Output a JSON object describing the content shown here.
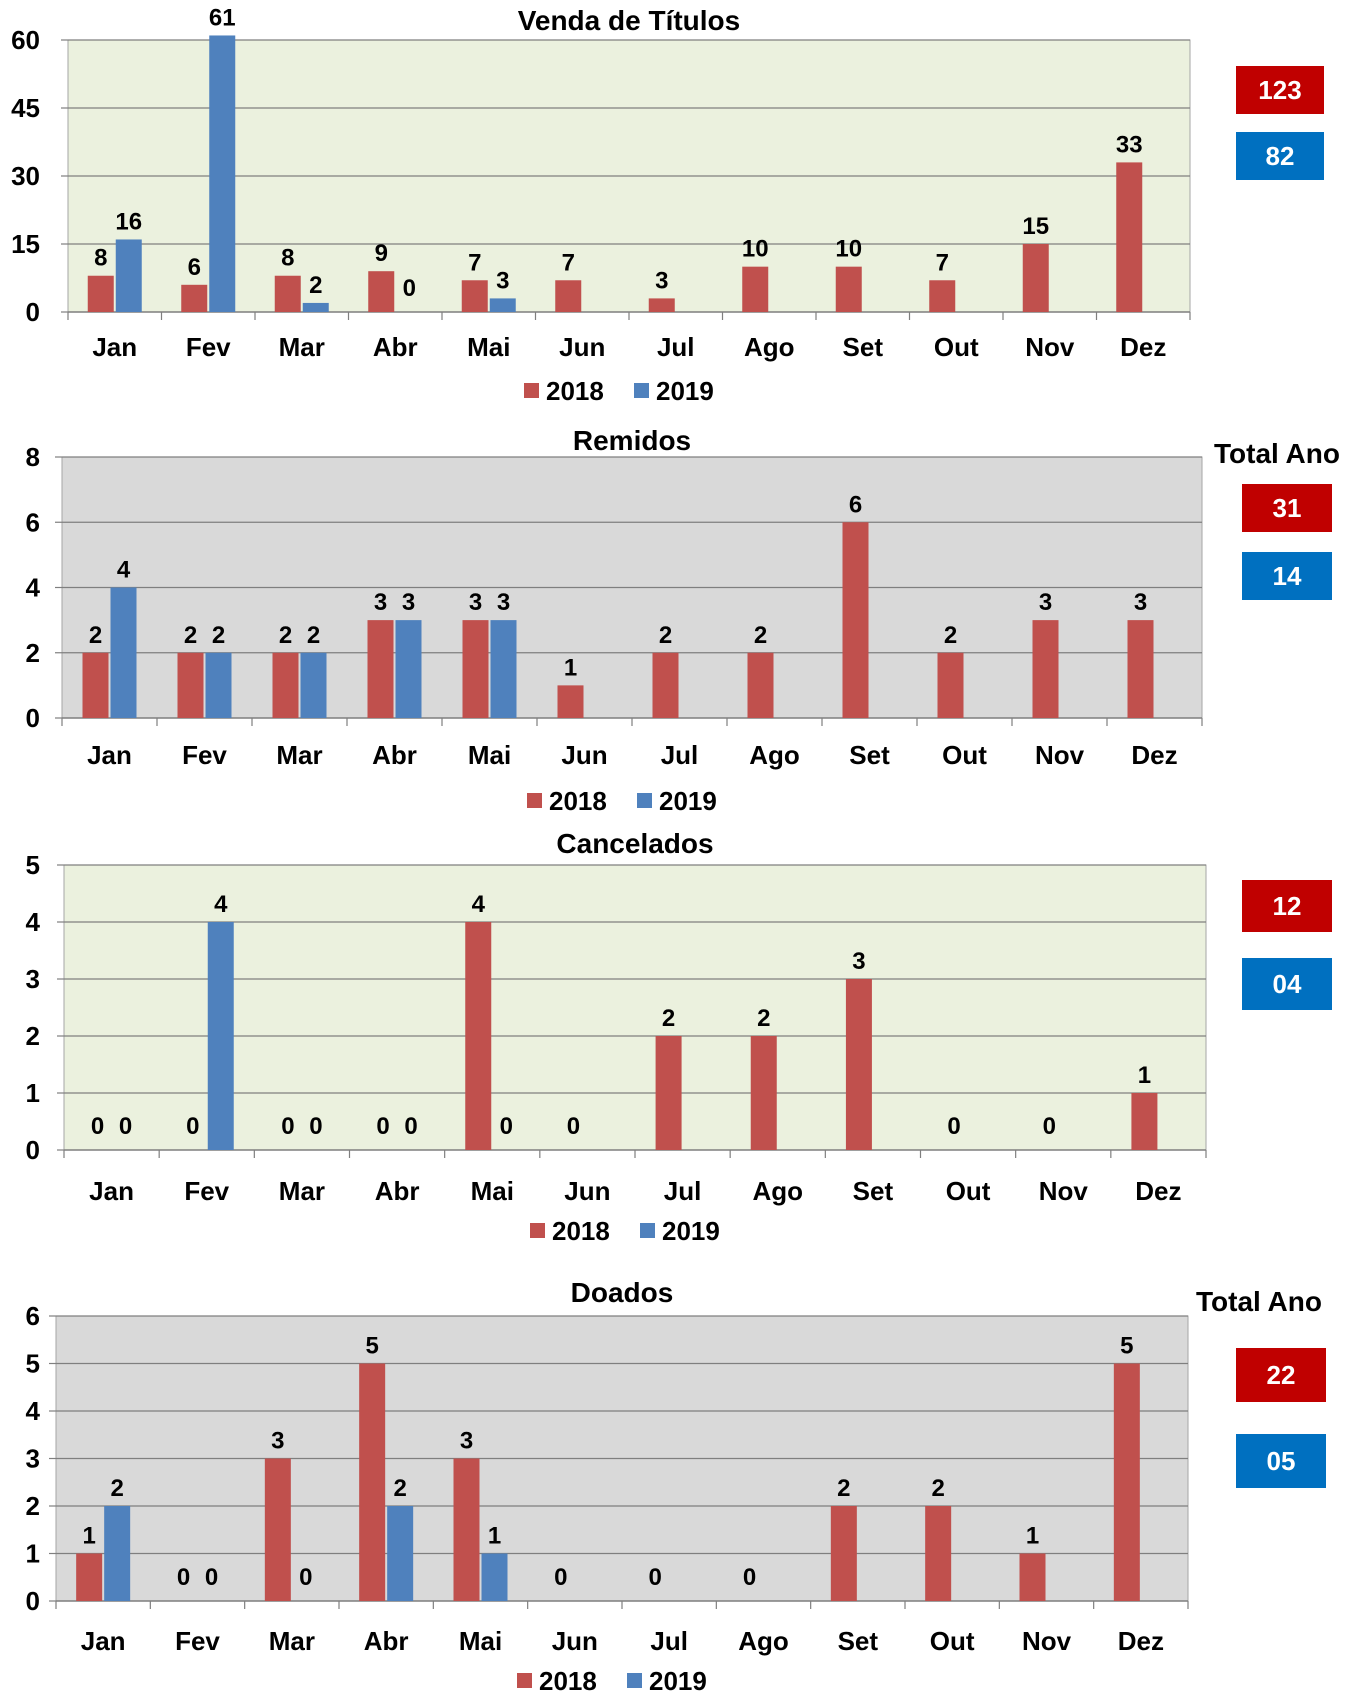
{
  "colors": {
    "series_2018": "#c0504d",
    "series_2019": "#4f81bd",
    "total_2018": "#c00000",
    "total_2019": "#0070c0"
  },
  "chart_data": [
    {
      "type": "bar",
      "title": "Venda de Títulos",
      "categories": [
        "Jan",
        "Fev",
        "Mar",
        "Abr",
        "Mai",
        "Jun",
        "Jul",
        "Ago",
        "Set",
        "Out",
        "Nov",
        "Dez"
      ],
      "series": [
        {
          "name": "2018",
          "values": [
            8,
            6,
            8,
            9,
            7,
            7,
            3,
            10,
            10,
            7,
            15,
            33
          ],
          "labels": [
            "8",
            "6",
            "8",
            "9",
            "7",
            "7",
            "3",
            "10",
            "10",
            "7",
            "15",
            "33"
          ]
        },
        {
          "name": "2019",
          "values": [
            16,
            61,
            2,
            0,
            3,
            null,
            null,
            null,
            null,
            null,
            null,
            null
          ],
          "labels": [
            "16",
            "61",
            "2",
            "0",
            "3",
            null,
            null,
            null,
            null,
            null,
            null,
            null
          ]
        }
      ],
      "ylim": [
        0,
        60
      ],
      "yticks": [
        "0",
        "15",
        "30",
        "45",
        "60"
      ],
      "plot_background": "#ebf1de",
      "grid": true,
      "legend": "bottom",
      "totals": {
        "heading": "",
        "y2018": "123",
        "y2019": "82"
      }
    },
    {
      "type": "bar",
      "title": "Remidos",
      "categories": [
        "Jan",
        "Fev",
        "Mar",
        "Abr",
        "Mai",
        "Jun",
        "Jul",
        "Ago",
        "Set",
        "Out",
        "Nov",
        "Dez"
      ],
      "series": [
        {
          "name": "2018",
          "values": [
            2,
            2,
            2,
            3,
            3,
            1,
            2,
            2,
            6,
            2,
            3,
            3
          ],
          "labels": [
            "2",
            "2",
            "2",
            "3",
            "3",
            "1",
            "2",
            "2",
            "6",
            "2",
            "3",
            "3"
          ]
        },
        {
          "name": "2019",
          "values": [
            4,
            2,
            2,
            3,
            3,
            null,
            null,
            null,
            null,
            null,
            null,
            null
          ],
          "labels": [
            "4",
            "2",
            "2",
            "3",
            "3",
            null,
            null,
            null,
            null,
            null,
            null,
            null
          ]
        }
      ],
      "ylim": [
        0,
        8
      ],
      "yticks": [
        "0",
        "2",
        "4",
        "6",
        "8"
      ],
      "plot_background": "#d9d9d9",
      "grid": true,
      "legend": "bottom",
      "totals": {
        "heading": "Total Ano",
        "y2018": "31",
        "y2019": "14"
      }
    },
    {
      "type": "bar",
      "title": "Cancelados",
      "categories": [
        "Jan",
        "Fev",
        "Mar",
        "Abr",
        "Mai",
        "Jun",
        "Jul",
        "Ago",
        "Set",
        "Out",
        "Nov",
        "Dez"
      ],
      "series": [
        {
          "name": "2018",
          "values": [
            0,
            0,
            0,
            0,
            4,
            0,
            2,
            2,
            3,
            0,
            0,
            1
          ],
          "labels": [
            "0",
            "0",
            "0",
            "0",
            "4",
            "0",
            "2",
            "2",
            "3",
            "0",
            "0",
            "1"
          ]
        },
        {
          "name": "2019",
          "values": [
            0,
            4,
            0,
            0,
            0,
            null,
            null,
            null,
            null,
            null,
            null,
            null
          ],
          "labels": [
            "0",
            "4",
            "0",
            "0",
            "0",
            null,
            null,
            null,
            null,
            null,
            null,
            null
          ]
        }
      ],
      "ylim": [
        0,
        5
      ],
      "yticks": [
        "0",
        "1",
        "2",
        "3",
        "4",
        "5"
      ],
      "plot_background": "#ebf1de",
      "grid": true,
      "legend": "bottom",
      "totals": {
        "heading": "",
        "y2018": "12",
        "y2019": "04"
      }
    },
    {
      "type": "bar",
      "title": "Doados",
      "categories": [
        "Jan",
        "Fev",
        "Mar",
        "Abr",
        "Mai",
        "Jun",
        "Jul",
        "Ago",
        "Set",
        "Out",
        "Nov",
        "Dez"
      ],
      "series": [
        {
          "name": "2018",
          "values": [
            1,
            0,
            3,
            5,
            3,
            0,
            0,
            0,
            2,
            2,
            1,
            5
          ],
          "labels": [
            "1",
            "0",
            "3",
            "5",
            "3",
            "0",
            "0",
            "0",
            "2",
            "2",
            "1",
            "5"
          ]
        },
        {
          "name": "2019",
          "values": [
            2,
            0,
            0,
            2,
            1,
            null,
            null,
            null,
            null,
            null,
            null,
            null
          ],
          "labels": [
            "2",
            "0",
            "0",
            "2",
            "1",
            null,
            null,
            null,
            null,
            null,
            null,
            null
          ]
        }
      ],
      "ylim": [
        0,
        6
      ],
      "yticks": [
        "0",
        "1",
        "2",
        "3",
        "4",
        "5",
        "6"
      ],
      "plot_background": "#d9d9d9",
      "grid": true,
      "legend": "bottom",
      "totals": {
        "heading": "Total Ano",
        "y2018": "22",
        "y2019": "05"
      }
    }
  ]
}
